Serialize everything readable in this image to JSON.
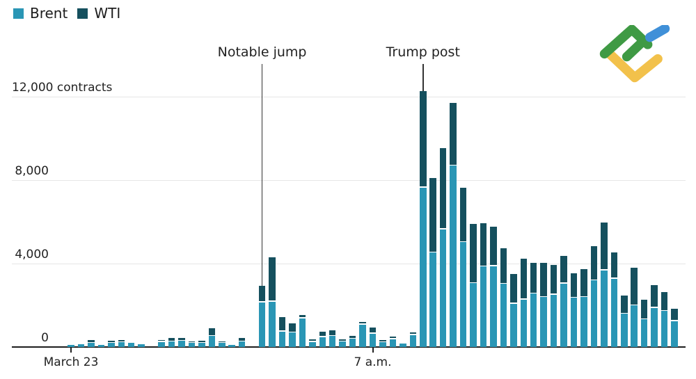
{
  "legend": {
    "items": [
      {
        "label": "Brent",
        "color": "#2a96b5"
      },
      {
        "label": "WTI",
        "color": "#15505e"
      }
    ]
  },
  "annotations": [
    {
      "label": "Notable jump",
      "index": 19
    },
    {
      "label": "Trump post",
      "index": 35
    }
  ],
  "logo": {
    "name": "litefinance-logo",
    "colors": {
      "green": "#3f9a44",
      "yellow": "#f2c14b",
      "blue": "#4090d8"
    }
  },
  "chart_data": {
    "type": "bar",
    "stacked": true,
    "title": "",
    "xlabel": "",
    "ylabel": "contracts",
    "ylim": [
      0,
      12400
    ],
    "grid": "horizontal",
    "legend_position": "top-left",
    "y_ticks": [
      {
        "value": 12000,
        "label": "12,000 contracts"
      },
      {
        "value": 8000,
        "label": "8,000"
      },
      {
        "value": 4000,
        "label": "4,000"
      },
      {
        "value": 0,
        "label": "0"
      }
    ],
    "x_ticks": [
      {
        "index": 0,
        "label": "March 23"
      },
      {
        "index": 30,
        "label": "7 a.m."
      }
    ],
    "categories_note": "61 intraday time slots from March 23 through 7 a.m. and beyond",
    "series": [
      {
        "name": "Brent",
        "color": "#2a96b5",
        "values": [
          90,
          120,
          200,
          110,
          190,
          220,
          200,
          140,
          0,
          250,
          260,
          290,
          190,
          190,
          530,
          190,
          90,
          260,
          0,
          2140,
          2170,
          740,
          700,
          1380,
          240,
          480,
          520,
          260,
          390,
          1070,
          650,
          230,
          370,
          170,
          570,
          7640,
          4530,
          5640,
          8690,
          5030,
          3060,
          3860,
          3880,
          3030,
          2080,
          2280,
          2560,
          2400,
          2510,
          3040,
          2360,
          2400,
          3190,
          3670,
          3280,
          1590,
          1990,
          1330,
          1880,
          1730,
          1250
        ]
      },
      {
        "name": "WTI",
        "color": "#15505e",
        "values": [
          0,
          0,
          80,
          0,
          50,
          70,
          0,
          0,
          0,
          40,
          110,
          110,
          30,
          60,
          310,
          30,
          0,
          110,
          0,
          730,
          2070,
          630,
          370,
          100,
          90,
          220,
          220,
          50,
          90,
          80,
          240,
          60,
          90,
          0,
          80,
          4590,
          3510,
          3830,
          2950,
          2550,
          2790,
          2040,
          1850,
          1640,
          1380,
          1890,
          1410,
          1600,
          1390,
          1290,
          1110,
          1280,
          1600,
          2250,
          1210,
          830,
          1750,
          900,
          1040,
          850,
          550
        ]
      }
    ]
  }
}
